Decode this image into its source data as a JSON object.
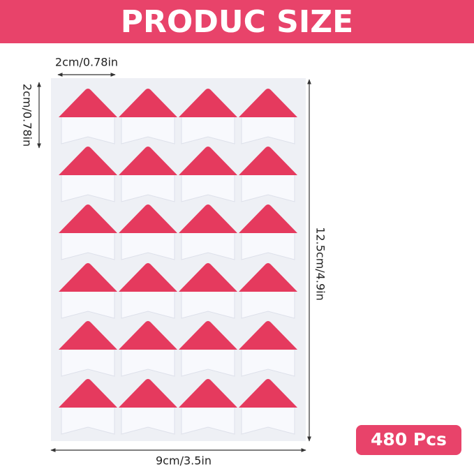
{
  "header": {
    "title": "PRODUC SIZE"
  },
  "dimensions": {
    "sticker_width": "2cm/0.78in",
    "sticker_height": "2cm/0.78in",
    "sheet_height": "12.5cm/4.9in",
    "sheet_width": "9cm/3.5in"
  },
  "badge": {
    "text": "480 Pcs"
  }
}
